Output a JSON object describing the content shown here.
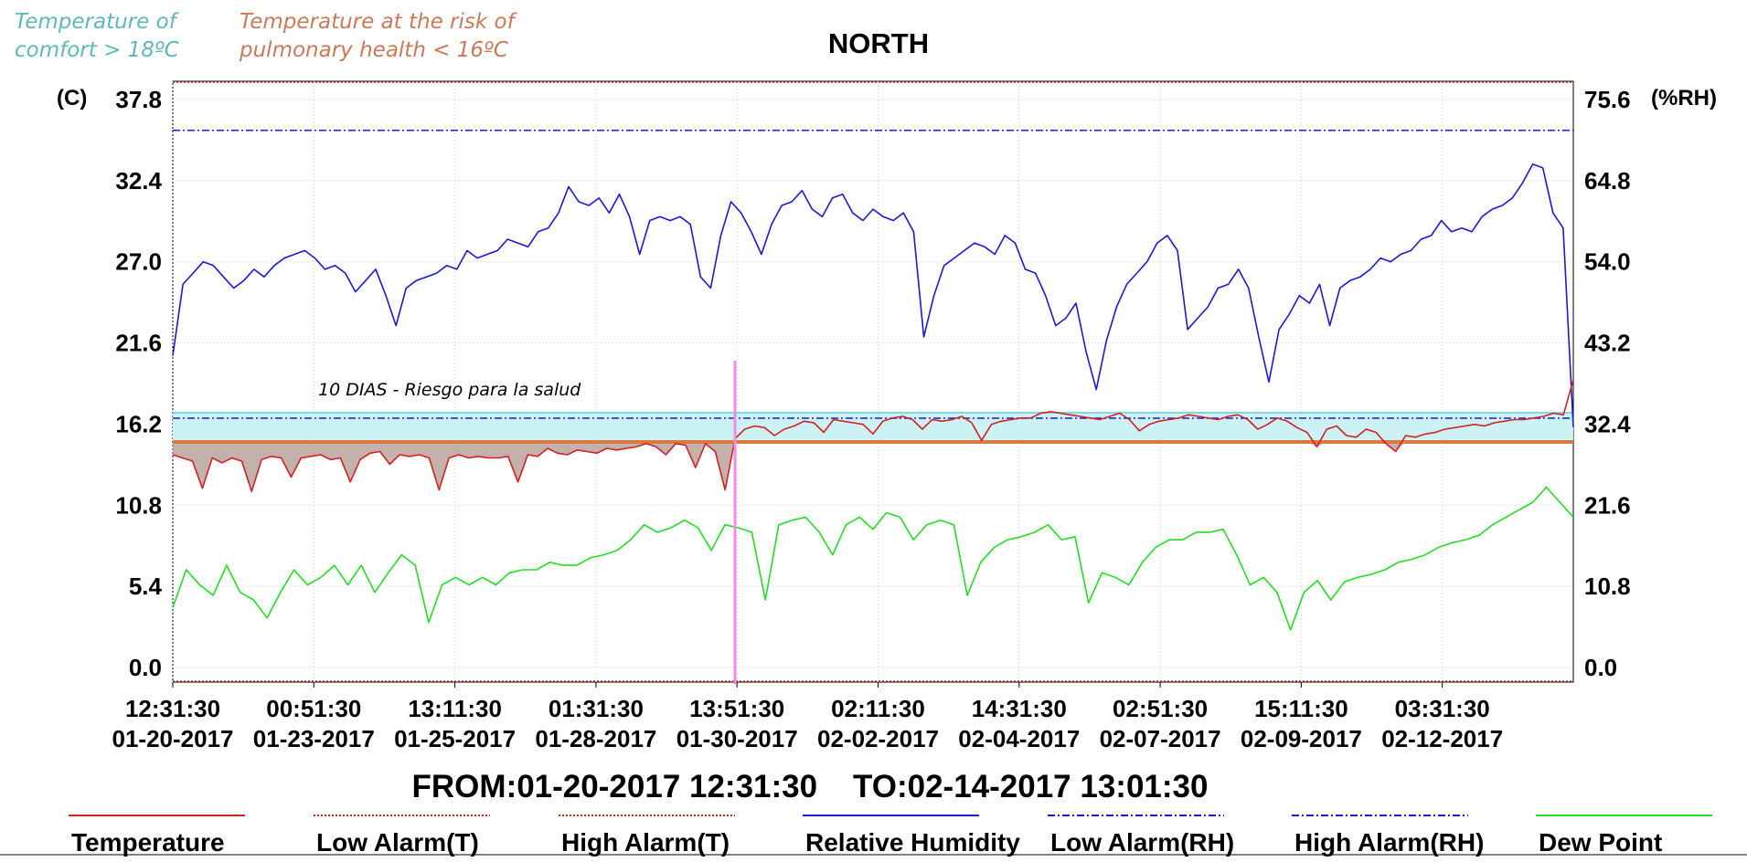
{
  "chart_data": {
    "type": "line",
    "title": "NORTH",
    "annotations": {
      "comfort": "Temperature of comfort > 18ºC",
      "comfort_lines": [
        "Temperature of",
        "comfort > 18ºC"
      ],
      "risk": "Temperature at the risk of pulmonary health < 16ºC",
      "risk_lines": [
        "Temperature at the risk of",
        "pulmonary health < 16ºC"
      ],
      "period": "10 DIAS - Riesgo para la salud"
    },
    "y_left": {
      "label": "(C)",
      "ticks": [
        "37.8",
        "32.4",
        "27.0",
        "21.6",
        "16.2",
        "10.8",
        "5.4",
        "0.0"
      ],
      "range": [
        0,
        37.8
      ]
    },
    "y_right": {
      "label": "(%RH)",
      "ticks": [
        "75.6",
        "64.8",
        "54.0",
        "43.2",
        "32.4",
        "21.6",
        "10.8",
        "0.0"
      ],
      "range": [
        0,
        75.6
      ]
    },
    "x_ticks": [
      {
        "time": "12:31:30",
        "date": "01-20-2017"
      },
      {
        "time": "00:51:30",
        "date": "01-23-2017"
      },
      {
        "time": "13:11:30",
        "date": "01-25-2017"
      },
      {
        "time": "01:31:30",
        "date": "01-28-2017"
      },
      {
        "time": "13:51:30",
        "date": "01-30-2017"
      },
      {
        "time": "02:11:30",
        "date": "02-02-2017"
      },
      {
        "time": "14:31:30",
        "date": "02-04-2017"
      },
      {
        "time": "02:51:30",
        "date": "02-07-2017"
      },
      {
        "time": "15:11:30",
        "date": "02-09-2017"
      },
      {
        "time": "03:31:30",
        "date": "02-12-2017"
      }
    ],
    "x_range": [
      "01-20-2017 12:31:30",
      "02-14-2017 13:01:30"
    ],
    "x_range_label": "FROM:01-20-2017 12:31:30    TO:02-14-2017 13:01:30",
    "grid": true,
    "legend_position": "bottom",
    "thresholds": {
      "comfort_C": 18,
      "risk_C": 16
    },
    "series": [
      {
        "name": "Temperature",
        "axis": "left",
        "color": "#d42020",
        "values": [
          15.2,
          15.0,
          14.8,
          13.1,
          15.0,
          14.7,
          15.0,
          14.8,
          12.9,
          14.9,
          15.1,
          15.0,
          13.8,
          15.0,
          15.1,
          15.2,
          14.9,
          15.0,
          13.5,
          14.9,
          15.3,
          15.4,
          14.6,
          15.2,
          15.1,
          15.2,
          15.0,
          13.0,
          15.0,
          15.2,
          15.0,
          15.1,
          15.0,
          15.0,
          15.1,
          13.5,
          15.2,
          15.1,
          15.6,
          15.3,
          15.2,
          15.5,
          15.4,
          15.3,
          15.6,
          15.5,
          15.6,
          15.7,
          15.9,
          15.7,
          15.2,
          15.9,
          15.8,
          14.4,
          15.9,
          15.4,
          13.0,
          16.2,
          16.8,
          17.0,
          16.9,
          16.4,
          16.8,
          17.0,
          17.3,
          17.2,
          16.6,
          17.4,
          17.3,
          17.2,
          17.1,
          16.5,
          17.3,
          17.5,
          17.6,
          17.4,
          16.8,
          17.4,
          17.3,
          17.4,
          17.6,
          17.2,
          16.1,
          17.1,
          17.3,
          17.4,
          17.5,
          17.5,
          17.8,
          17.9,
          17.8,
          17.7,
          17.6,
          17.5,
          17.4,
          17.6,
          17.8,
          17.4,
          16.7,
          17.1,
          17.3,
          17.4,
          17.5,
          17.7,
          17.6,
          17.5,
          17.4,
          17.6,
          17.7,
          17.4,
          16.8,
          17.1,
          17.5,
          17.3,
          16.9,
          16.6,
          15.7,
          16.8,
          17.0,
          16.4,
          16.3,
          16.8,
          16.6,
          15.9,
          15.4,
          16.4,
          16.3,
          16.5,
          16.6,
          16.8,
          16.9,
          17.0,
          17.1,
          17.0,
          17.2,
          17.3,
          17.4,
          17.4,
          17.5,
          17.6,
          17.8,
          17.7,
          19.9
        ]
      },
      {
        "name": "Low Alarm(T)",
        "axis": "left",
        "color": "#d42020",
        "dash": "dotted",
        "values": [
          0.0
        ]
      },
      {
        "name": "High Alarm(T)",
        "axis": "left",
        "color": "#d42020",
        "dash": "dotted",
        "values": [
          37.8
        ]
      },
      {
        "name": "Relative Humidity",
        "axis": "right",
        "color": "#1a1ad4",
        "values": [
          41.5,
          51.0,
          52.5,
          54.0,
          53.5,
          52.0,
          50.5,
          51.5,
          53.0,
          52.0,
          53.5,
          54.5,
          55.0,
          55.5,
          54.5,
          53.0,
          53.5,
          52.5,
          50.0,
          51.5,
          53.0,
          49.5,
          45.5,
          50.5,
          51.5,
          52.0,
          52.5,
          53.5,
          53.0,
          55.5,
          54.5,
          55.0,
          55.5,
          57.0,
          56.5,
          56.0,
          58.0,
          58.5,
          60.5,
          64.0,
          62.0,
          61.5,
          62.5,
          60.5,
          63.0,
          60.0,
          55.0,
          59.5,
          60.0,
          59.5,
          60.0,
          59.0,
          52.0,
          50.5,
          57.5,
          62.0,
          60.5,
          58.0,
          55.0,
          59.0,
          61.5,
          62.0,
          63.5,
          61.0,
          60.0,
          62.5,
          63.0,
          60.5,
          59.5,
          61.0,
          60.0,
          59.5,
          60.5,
          58.0,
          44.0,
          49.5,
          53.5,
          54.5,
          55.5,
          56.5,
          56.0,
          55.0,
          57.5,
          56.5,
          53.0,
          52.5,
          49.5,
          45.5,
          46.5,
          48.5,
          42.0,
          37.0,
          43.5,
          48.0,
          51.0,
          52.5,
          54.0,
          56.5,
          57.5,
          55.5,
          45.0,
          46.5,
          48.0,
          50.5,
          51.0,
          53.0,
          50.5,
          44.0,
          38.0,
          45.0,
          47.0,
          49.5,
          48.5,
          51.0,
          45.5,
          50.5,
          51.5,
          52.0,
          53.0,
          54.5,
          54.0,
          55.0,
          55.5,
          57.0,
          57.5,
          59.5,
          58.0,
          58.5,
          58.0,
          60.0,
          61.0,
          61.5,
          62.5,
          64.5,
          67.0,
          66.5,
          60.5,
          58.5,
          32.0
        ]
      },
      {
        "name": "Low Alarm(RH)",
        "axis": "right",
        "color": "#1a1ad4",
        "dash": "dashdot",
        "values": [
          33.5
        ]
      },
      {
        "name": "High Alarm(RH)",
        "axis": "right",
        "color": "#1a1ad4",
        "dash": "dashdot",
        "values": [
          71.5
        ]
      },
      {
        "name": "Dew Point",
        "axis": "left",
        "color": "#22dd22",
        "values": [
          4.0,
          6.5,
          5.5,
          4.8,
          6.8,
          5.0,
          4.5,
          3.3,
          5.0,
          6.5,
          5.5,
          6.0,
          6.8,
          5.5,
          6.8,
          5.0,
          6.3,
          7.5,
          6.8,
          3.0,
          5.5,
          6.0,
          5.5,
          6.0,
          5.5,
          6.3,
          6.5,
          6.5,
          7.0,
          6.8,
          6.8,
          7.3,
          7.5,
          7.8,
          8.5,
          9.5,
          9.0,
          9.3,
          9.8,
          9.3,
          7.8,
          9.5,
          9.3,
          9.0,
          4.5,
          9.5,
          9.8,
          10.0,
          9.0,
          7.5,
          9.5,
          10.0,
          9.2,
          10.3,
          10.0,
          8.5,
          9.5,
          9.8,
          9.5,
          4.8,
          7.0,
          8.0,
          8.5,
          8.7,
          9.0,
          9.5,
          8.5,
          8.7,
          4.3,
          6.3,
          6.0,
          5.5,
          7.0,
          8.0,
          8.5,
          8.5,
          9.0,
          9.0,
          9.2,
          7.5,
          5.5,
          6.0,
          5.0,
          2.5,
          5.0,
          5.8,
          4.5,
          5.7,
          6.0,
          6.2,
          6.5,
          7.0,
          7.2,
          7.5,
          8.0,
          8.3,
          8.5,
          8.8,
          9.5,
          10.0,
          10.5,
          11.0,
          12.0,
          11.0,
          10.0
        ]
      }
    ]
  }
}
